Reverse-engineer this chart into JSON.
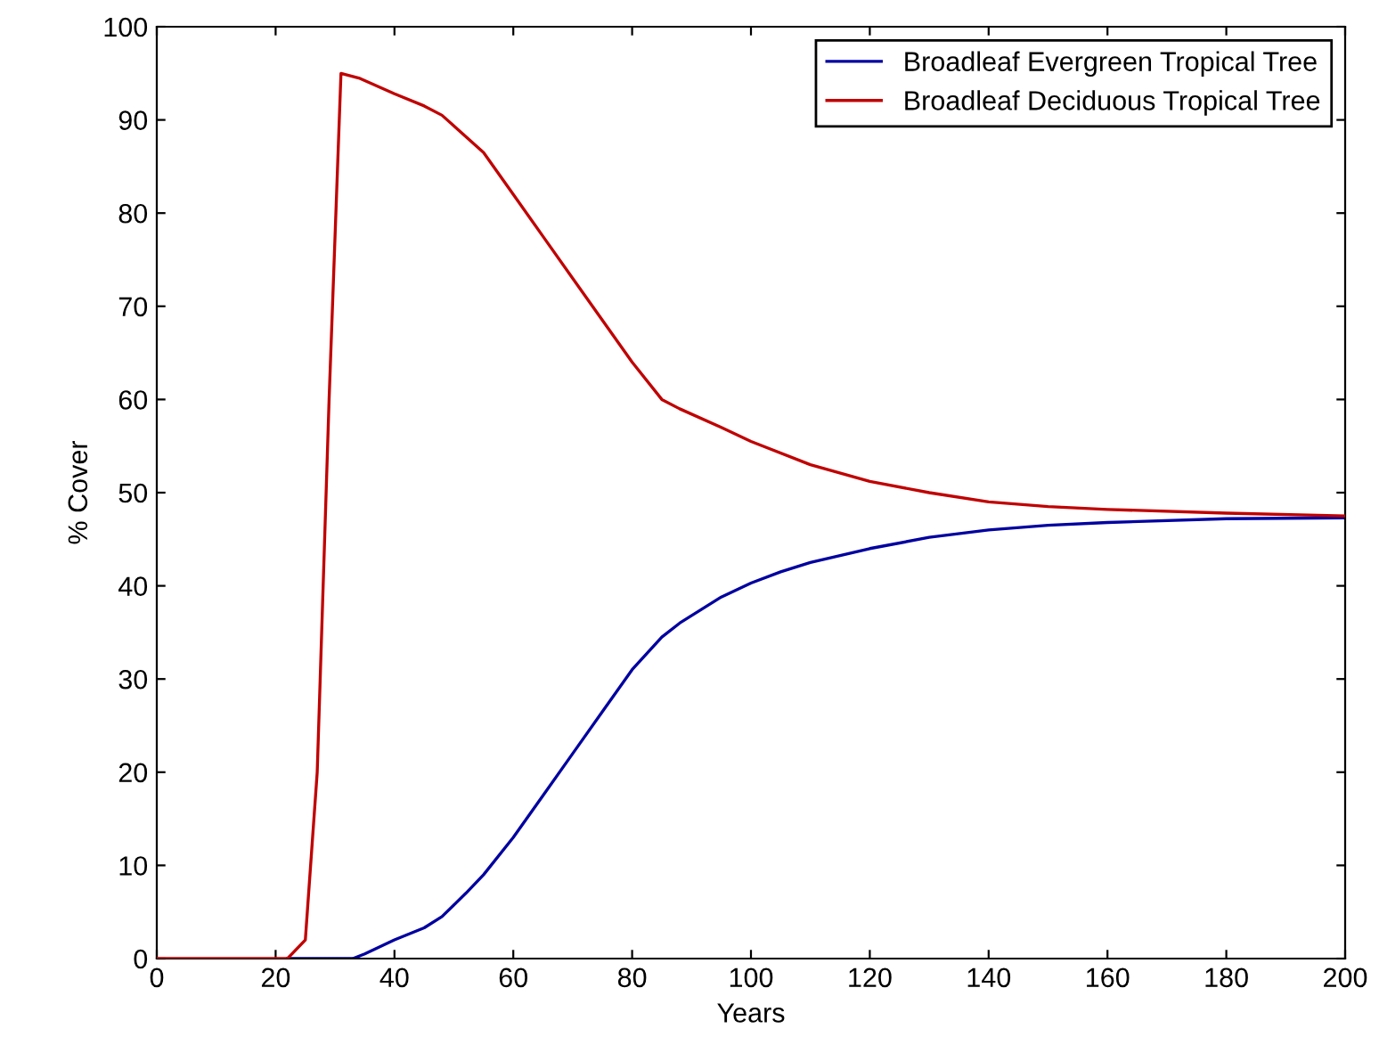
{
  "chart_data": {
    "type": "line",
    "xlabel": "Years",
    "ylabel": "% Cover",
    "xlim": [
      0,
      200
    ],
    "ylim": [
      0,
      100
    ],
    "xticks": [
      0,
      20,
      40,
      60,
      80,
      100,
      120,
      140,
      160,
      180,
      200
    ],
    "yticks": [
      0,
      10,
      20,
      30,
      40,
      50,
      60,
      70,
      80,
      90,
      100
    ],
    "grid": false,
    "legend": "top right",
    "marker": "none",
    "line_style": "solid",
    "series": [
      {
        "name": "Broadleaf Evergreen Tropical Tree",
        "color": "#0000a0",
        "x": [
          22,
          26,
          30,
          33,
          35,
          40,
          45,
          48,
          52,
          55,
          60,
          65,
          70,
          75,
          80,
          85,
          88,
          95,
          100,
          105,
          110,
          120,
          130,
          140,
          150,
          160,
          180,
          200
        ],
        "values": [
          0,
          0,
          0,
          0,
          0.5,
          2,
          3.3,
          4.5,
          7,
          9,
          13,
          17.5,
          22,
          26.5,
          31,
          34.5,
          36,
          38.8,
          40.3,
          41.5,
          42.5,
          44,
          45.2,
          46,
          46.5,
          46.8,
          47.2,
          47.3
        ]
      },
      {
        "name": "Broadleaf Deciduous Tropical Tree",
        "color": "#c00000",
        "x": [
          0,
          10,
          20,
          22,
          25,
          27,
          29,
          31,
          34,
          40,
          45,
          48,
          55,
          60,
          65,
          70,
          75,
          80,
          85,
          88,
          95,
          100,
          110,
          120,
          130,
          140,
          150,
          160,
          180,
          200
        ],
        "values": [
          0,
          0,
          0,
          0,
          2,
          20,
          60,
          95,
          94.5,
          92.8,
          91.5,
          90.5,
          86.5,
          82,
          77.5,
          73,
          68.5,
          64,
          60,
          59,
          57,
          55.5,
          53,
          51.2,
          50,
          49,
          48.5,
          48.2,
          47.8,
          47.5
        ]
      }
    ]
  }
}
